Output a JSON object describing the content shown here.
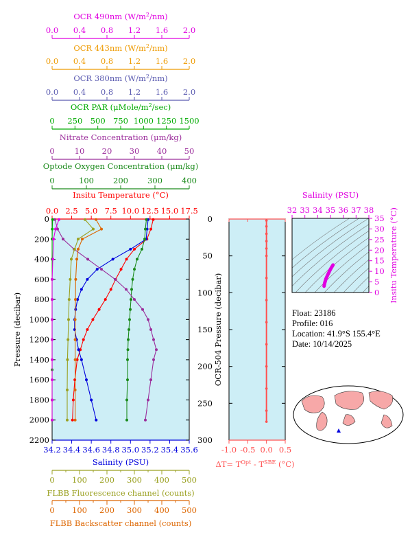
{
  "colors": {
    "ocr490": "#e000e0",
    "ocr443": "#ee9a00",
    "ocr380": "#5a5ab0",
    "par": "#00aa00",
    "nitrate": "#9b2d9b",
    "oxygen": "#1a8a1a",
    "temperature": "#ff0000",
    "salinity": "#0000dd",
    "fluorescence": "#9aa020",
    "backscatter": "#dd6600",
    "plot_bg": "#cdeef6",
    "dt_line": "#ff5050"
  },
  "axes": {
    "ocr490": {
      "label": "OCR 490nm (W/m²/nm)",
      "ticks": [
        "0.0",
        "0.4",
        "0.8",
        "1.2",
        "1.6",
        "2.0"
      ]
    },
    "ocr443": {
      "label": "OCR 443nm (W/m²/nm)",
      "ticks": [
        "0.0",
        "0.4",
        "0.8",
        "1.2",
        "1.6",
        "2.0"
      ]
    },
    "ocr380": {
      "label": "OCR 380nm (W/m²/nm)",
      "ticks": [
        "0.0",
        "0.4",
        "0.8",
        "1.2",
        "1.6",
        "2.0"
      ]
    },
    "par": {
      "label": "OCR PAR (μMole/m²/sec)",
      "ticks": [
        "0",
        "250",
        "500",
        "750",
        "1000",
        "1250",
        "1500"
      ]
    },
    "nitrate": {
      "label": "Nitrate Concentration (μm/kg)",
      "ticks": [
        "0",
        "10",
        "20",
        "30",
        "40",
        "50"
      ]
    },
    "oxygen": {
      "label": "Optode Oxygen Concentration (μm/kg)",
      "ticks": [
        "0",
        "100",
        "200",
        "300",
        "400"
      ]
    },
    "temperature": {
      "label": "Insitu Temperature (°C)",
      "ticks": [
        "0.0",
        "2.5",
        "5.0",
        "7.5",
        "10.0",
        "12.5",
        "15.0",
        "17.5"
      ]
    },
    "salinity": {
      "label": "Salinity (PSU)",
      "ticks": [
        "34.2",
        "34.4",
        "34.6",
        "34.8",
        "35.0",
        "35.2",
        "35.4",
        "35.6"
      ]
    },
    "fluorescence": {
      "label": "FLBB Fluorescence channel (counts)",
      "ticks": [
        "0",
        "50",
        "100",
        "150",
        "200",
        "250",
        "300",
        "350",
        "400",
        "450",
        "500"
      ]
    },
    "backscatter": {
      "label": "FLBB Backscatter channel (counts)",
      "ticks": [
        "0",
        "50",
        "100",
        "150",
        "200",
        "250",
        "300",
        "350",
        "400",
        "450",
        "500"
      ]
    },
    "pressure": {
      "label": "Pressure (decibar)",
      "ticks": [
        "0",
        "200",
        "400",
        "600",
        "800",
        "1000",
        "1200",
        "1400",
        "1600",
        "1800",
        "2000",
        "2200"
      ]
    },
    "ocr504_pressure": {
      "label": "OCR-504 Pressure (decibar)",
      "ticks": [
        "0",
        "50",
        "100",
        "150",
        "200",
        "250",
        "300"
      ]
    },
    "dt": {
      "label": "ΔT= T",
      "sup1": "Opt",
      "mid": " - T",
      "sup2": "SBE",
      "end": " (°C)",
      "ticks": [
        "-1.0",
        "-0.5",
        "0.0",
        "0.5"
      ]
    },
    "ts_salinity": {
      "label": "Salinity (PSU)",
      "ticks": [
        "32",
        "33",
        "34",
        "35",
        "36",
        "37",
        "38"
      ]
    },
    "ts_temperature": {
      "label": "Insitu Temperature (°C)",
      "ticks": [
        "0",
        "5",
        "10",
        "15",
        "20",
        "25",
        "30",
        "35"
      ]
    }
  },
  "info": {
    "float": "Float:  23186",
    "profile": "Profile:  016",
    "location": "Location:  41.9°S  155.4°E",
    "date": "Date:  10/14/2025"
  },
  "chart_data": [
    {
      "type": "line",
      "title": "",
      "y_axis": "Pressure (decibar)",
      "ylim": [
        2200,
        0
      ],
      "series": [
        {
          "name": "Insitu Temperature (°C)",
          "xlim": [
            0,
            17.5
          ],
          "x": [
            12.9,
            12.6,
            12.1,
            10.5,
            9.5,
            8.8,
            8.1,
            7.5,
            6.8,
            6.0,
            5.2,
            4.5,
            4.0,
            3.6,
            3.2,
            2.9,
            2.7,
            2.6
          ],
          "y": [
            5,
            100,
            200,
            300,
            400,
            500,
            600,
            700,
            800,
            900,
            1000,
            1100,
            1200,
            1300,
            1400,
            1600,
            1800,
            2000
          ]
        },
        {
          "name": "Salinity (PSU)",
          "xlim": [
            34.2,
            35.6
          ],
          "x": [
            35.18,
            35.17,
            35.16,
            35.0,
            34.82,
            34.66,
            34.56,
            34.5,
            34.46,
            34.44,
            34.43,
            34.43,
            34.45,
            34.47,
            34.5,
            34.55,
            34.6,
            34.65
          ],
          "y": [
            5,
            100,
            200,
            300,
            400,
            500,
            600,
            700,
            800,
            900,
            1000,
            1100,
            1200,
            1300,
            1400,
            1600,
            1800,
            2000
          ]
        },
        {
          "name": "Optode Oxygen Concentration (μm/kg)",
          "xlim": [
            0,
            400
          ],
          "x": [
            275,
            272,
            270,
            262,
            248,
            240,
            235,
            232,
            230,
            228,
            226,
            224,
            222,
            221,
            220,
            220,
            218,
            218
          ],
          "y": [
            5,
            100,
            200,
            300,
            400,
            500,
            600,
            700,
            800,
            900,
            1000,
            1100,
            1200,
            1300,
            1400,
            1600,
            1800,
            2000
          ]
        },
        {
          "name": "Nitrate Concentration (μm/kg)",
          "xlim": [
            0,
            50
          ],
          "x": [
            1,
            2,
            4,
            8,
            13,
            18,
            23,
            27,
            30,
            33,
            35,
            36,
            37,
            38,
            37,
            36,
            35,
            34
          ],
          "y": [
            5,
            100,
            200,
            300,
            400,
            500,
            600,
            700,
            800,
            900,
            1000,
            1100,
            1200,
            1300,
            1400,
            1600,
            1800,
            2000
          ]
        },
        {
          "name": "OCR PAR (μMole/m²/sec)",
          "xlim": [
            0,
            1500
          ],
          "x": [
            5,
            2,
            0,
            0,
            0,
            0,
            0,
            0,
            0,
            0,
            0
          ],
          "y": [
            5,
            100,
            200,
            400,
            600,
            800,
            1000,
            1200,
            1500,
            1800,
            2000
          ]
        },
        {
          "name": "OCR 490nm (W/m²/nm)",
          "xlim": [
            0,
            2.0
          ],
          "x": [
            0.1,
            0.05,
            0.02,
            0.01,
            0,
            0,
            0,
            0,
            0,
            0,
            0,
            0
          ],
          "y": [
            5,
            100,
            200,
            400,
            600,
            800,
            1000,
            1200,
            1400,
            1600,
            1800,
            2000
          ]
        },
        {
          "name": "FLBB Fluorescence channel (counts)",
          "xlim": [
            0,
            500
          ],
          "x": [
            120,
            150,
            95,
            82,
            70,
            66,
            62,
            60,
            58,
            56,
            55,
            55
          ],
          "y": [
            5,
            100,
            200,
            300,
            400,
            600,
            800,
            1000,
            1200,
            1400,
            1700,
            2000
          ]
        },
        {
          "name": "FLBB Backscatter channel (counts)",
          "xlim": [
            0,
            500
          ],
          "x": [
            160,
            180,
            110,
            95,
            90,
            86,
            85,
            84,
            84,
            84,
            84,
            84
          ],
          "y": [
            5,
            100,
            200,
            300,
            400,
            600,
            800,
            1000,
            1200,
            1400,
            1700,
            2000
          ]
        }
      ]
    },
    {
      "type": "line",
      "title": "",
      "x_axis": "ΔT= T(Opt) - T(SBE) (°C)",
      "y_axis": "OCR-504 Pressure (decibar)",
      "xlim": [
        -1.0,
        0.5
      ],
      "ylim": [
        300,
        0
      ],
      "series": [
        {
          "name": "ΔT",
          "x": [
            0.0,
            0.0,
            0.0,
            0.0,
            0.0,
            0.0,
            0.0,
            0.0,
            0.0,
            0.0,
            0.0,
            0.0,
            0.0,
            0.0
          ],
          "y": [
            2,
            10,
            20,
            30,
            40,
            50,
            80,
            110,
            140,
            170,
            200,
            230,
            260,
            275
          ]
        }
      ]
    },
    {
      "type": "scatter",
      "title": "",
      "x_axis": "Salinity (PSU)",
      "y_axis": "Insitu Temperature (°C)",
      "xlim": [
        32,
        38
      ],
      "ylim": [
        0,
        35
      ],
      "series": [
        {
          "name": "T-S",
          "x": [
            34.5,
            34.55,
            34.65,
            34.8,
            35.0,
            35.2
          ],
          "y": [
            3,
            4.5,
            6.5,
            8.5,
            11,
            13
          ]
        }
      ]
    }
  ]
}
